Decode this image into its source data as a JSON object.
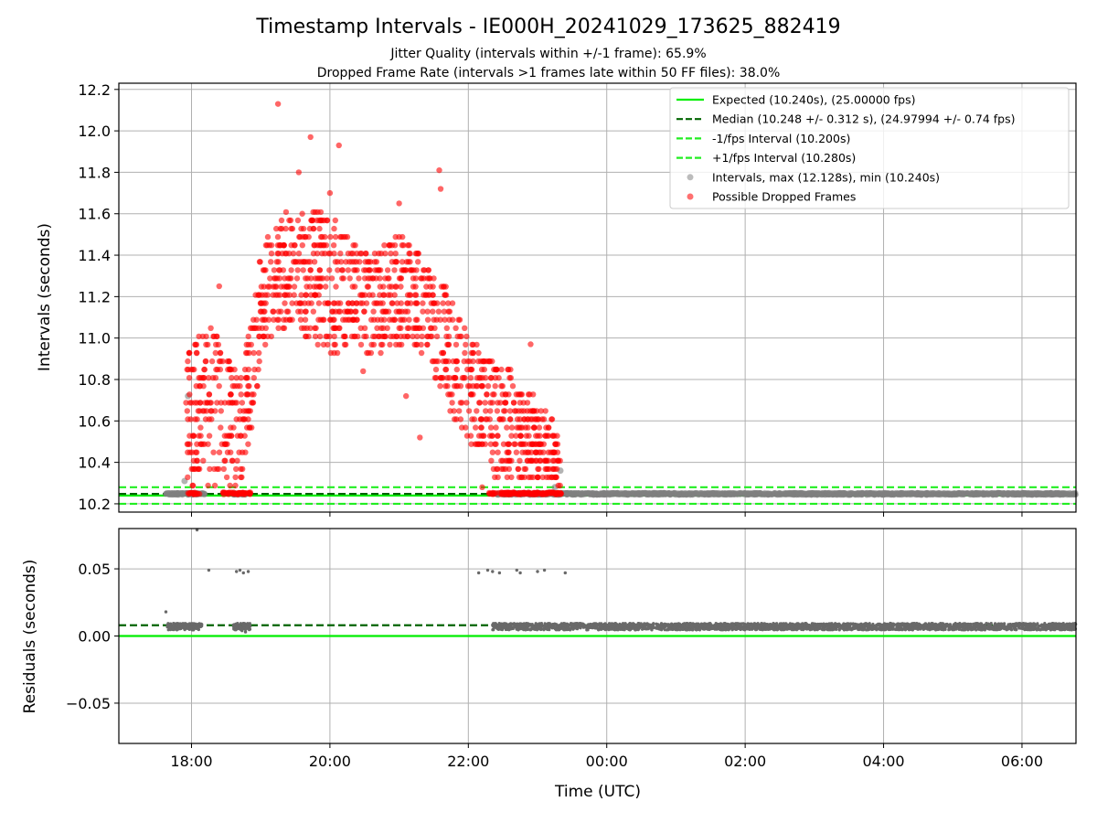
{
  "title": "Timestamp Intervals - IE000H_20241029_173625_882419",
  "subtitle_1": "Jitter Quality (intervals within +/-1 frame): 65.9%",
  "subtitle_2": "Dropped Frame Rate (intervals >1 frames late within 50 FF files): 38.0%",
  "colors": {
    "expected": "#00ee00",
    "median": "#006400",
    "interval_band": "#22ee22",
    "normal_points": "#808080",
    "dropped_points": "#ff0000",
    "grid": "#b0b0b0"
  },
  "chart_data": [
    {
      "type": "scatter",
      "panel": "top",
      "xlabel": "",
      "ylabel": "Intervals (seconds)",
      "x_unit": "hours since 2024-10-29 00:00 UTC (axis shows time of day)",
      "xlim": [
        16.95,
        30.78
      ],
      "ylim": [
        10.16,
        12.23
      ],
      "y_ticks": [
        "10.2",
        "10.4",
        "10.6",
        "10.8",
        "11.0",
        "11.2",
        "11.4",
        "11.6",
        "11.8",
        "12.0",
        "12.2"
      ],
      "y_tick_values": [
        10.2,
        10.4,
        10.6,
        10.8,
        11.0,
        11.2,
        11.4,
        11.6,
        11.8,
        12.0,
        12.2
      ],
      "grid": true,
      "legend_position": "top-right",
      "lines": [
        {
          "name": "Expected (10.240s), (25.00000 fps)",
          "y": 10.24,
          "style": "solid",
          "color": "#00ee00"
        },
        {
          "name": "Median (10.248 +/- 0.312 s), (24.97994 +/- 0.74 fps)",
          "y": 10.248,
          "style": "dashed",
          "color": "#006400"
        },
        {
          "name": "-1/fps Interval (10.200s)",
          "y": 10.2,
          "style": "dashed",
          "color": "#22ee22"
        },
        {
          "name": "+1/fps Interval (10.280s)",
          "y": 10.28,
          "style": "dashed",
          "color": "#22ee22"
        }
      ],
      "series": [
        {
          "name": "Intervals, max (12.128s), min (10.240s)",
          "kind": "normal",
          "color": "#808080",
          "description": "baseline intervals near 10.25 s from 17:40 to 06:47, plus a few outliers",
          "baseline_ranges": [
            [
              17.62,
              18.2
            ],
            [
              18.6,
              18.8
            ],
            [
              22.4,
              30.78
            ]
          ],
          "baseline_y": 10.248,
          "outliers": [
            [
              17.9,
              10.31
            ],
            [
              17.95,
              10.72
            ],
            [
              23.25,
              10.28
            ],
            [
              23.33,
              10.36
            ]
          ]
        },
        {
          "name": "Possible Dropped Frames",
          "kind": "dropped",
          "color": "#ff0000",
          "description": "intervals above 10.28 s between about 17:55 and 23:35",
          "envelope": [
            [
              17.92,
              10.25,
              10.95
            ],
            [
              18.1,
              10.25,
              11.0
            ],
            [
              18.3,
              10.25,
              11.05
            ],
            [
              18.5,
              10.3,
              10.95
            ],
            [
              18.7,
              10.25,
              10.8
            ],
            [
              18.85,
              10.4,
              11.05
            ],
            [
              19.0,
              10.9,
              11.4
            ],
            [
              19.2,
              11.0,
              11.55
            ],
            [
              19.4,
              11.05,
              11.6
            ],
            [
              19.6,
              11.0,
              11.55
            ],
            [
              19.8,
              10.95,
              11.6
            ],
            [
              20.0,
              10.9,
              11.6
            ],
            [
              20.2,
              10.95,
              11.5
            ],
            [
              20.4,
              10.9,
              11.45
            ],
            [
              20.6,
              10.9,
              11.4
            ],
            [
              20.8,
              10.95,
              11.45
            ],
            [
              21.0,
              10.95,
              11.5
            ],
            [
              21.2,
              10.95,
              11.45
            ],
            [
              21.4,
              10.9,
              11.35
            ],
            [
              21.6,
              10.7,
              11.3
            ],
            [
              21.8,
              10.55,
              11.15
            ],
            [
              22.0,
              10.45,
              11.0
            ],
            [
              22.2,
              10.45,
              10.95
            ],
            [
              22.4,
              10.3,
              10.85
            ],
            [
              22.6,
              10.3,
              10.85
            ],
            [
              22.8,
              10.3,
              10.75
            ],
            [
              23.0,
              10.3,
              10.7
            ],
            [
              23.2,
              10.3,
              10.6
            ],
            [
              23.35,
              10.25,
              10.5
            ]
          ],
          "extremes": [
            [
              19.25,
              12.13
            ],
            [
              19.72,
              11.97
            ],
            [
              20.13,
              11.93
            ],
            [
              19.55,
              11.8
            ],
            [
              21.58,
              11.81
            ],
            [
              21.6,
              11.72
            ],
            [
              21.0,
              11.65
            ],
            [
              18.4,
              11.25
            ],
            [
              18.55,
              10.85
            ],
            [
              20.48,
              10.84
            ],
            [
              21.3,
              10.52
            ],
            [
              21.1,
              10.72
            ],
            [
              22.9,
              10.97
            ],
            [
              22.2,
              10.28
            ],
            [
              19.6,
              11.6
            ],
            [
              20.0,
              11.7
            ]
          ]
        }
      ]
    },
    {
      "type": "scatter",
      "panel": "bottom",
      "xlabel": "Time (UTC)",
      "ylabel": "Residuals (seconds)",
      "xlim": [
        16.95,
        30.78
      ],
      "ylim": [
        -0.08,
        0.08
      ],
      "x_ticks": [
        "18:00",
        "20:00",
        "22:00",
        "00:00",
        "02:00",
        "04:00",
        "06:00"
      ],
      "x_tick_values": [
        18,
        20,
        22,
        24,
        26,
        28,
        30
      ],
      "y_ticks": [
        "−0.05",
        "0.00",
        "0.05"
      ],
      "y_tick_values": [
        -0.05,
        0.0,
        0.05
      ],
      "grid": true,
      "lines": [
        {
          "y": 0.0,
          "style": "solid",
          "color": "#00ee00"
        },
        {
          "y": 0.008,
          "style": "dashed",
          "color": "#006400"
        }
      ],
      "series": [
        {
          "kind": "residuals",
          "color": "#696969",
          "baseline_ranges": [
            [
              17.65,
              18.15
            ],
            [
              18.6,
              18.85
            ],
            [
              22.35,
              30.78
            ]
          ],
          "baseline_y": 0.007,
          "outliers": [
            [
              17.63,
              0.018
            ],
            [
              18.08,
              0.079
            ],
            [
              18.25,
              0.049
            ],
            [
              18.65,
              0.048
            ],
            [
              18.7,
              0.049
            ],
            [
              18.75,
              0.047
            ],
            [
              18.82,
              0.048
            ],
            [
              22.15,
              0.047
            ],
            [
              22.28,
              0.049
            ],
            [
              22.35,
              0.048
            ],
            [
              22.45,
              0.047
            ],
            [
              22.7,
              0.049
            ],
            [
              22.75,
              0.047
            ],
            [
              23.0,
              0.048
            ],
            [
              23.1,
              0.049
            ],
            [
              23.4,
              0.047
            ],
            [
              18.78,
              0.003
            ],
            [
              18.73,
              0.004
            ]
          ]
        }
      ]
    }
  ],
  "legend": [
    {
      "label": "Expected (10.240s), (25.00000 fps)",
      "marker": "solid-line",
      "color": "#00ee00"
    },
    {
      "label": "Median (10.248 +/- 0.312 s), (24.97994 +/- 0.74 fps)",
      "marker": "dashed-line",
      "color": "#006400"
    },
    {
      "label": "-1/fps Interval (10.200s)",
      "marker": "dashed-line",
      "color": "#22ee22"
    },
    {
      "label": "+1/fps Interval (10.280s)",
      "marker": "dashed-line",
      "color": "#22ee22"
    },
    {
      "label": "Intervals, max (12.128s), min (10.240s)",
      "marker": "dot",
      "color": "#a0a0a0"
    },
    {
      "label": "Possible Dropped Frames",
      "marker": "dot",
      "color": "#ff3333"
    }
  ]
}
